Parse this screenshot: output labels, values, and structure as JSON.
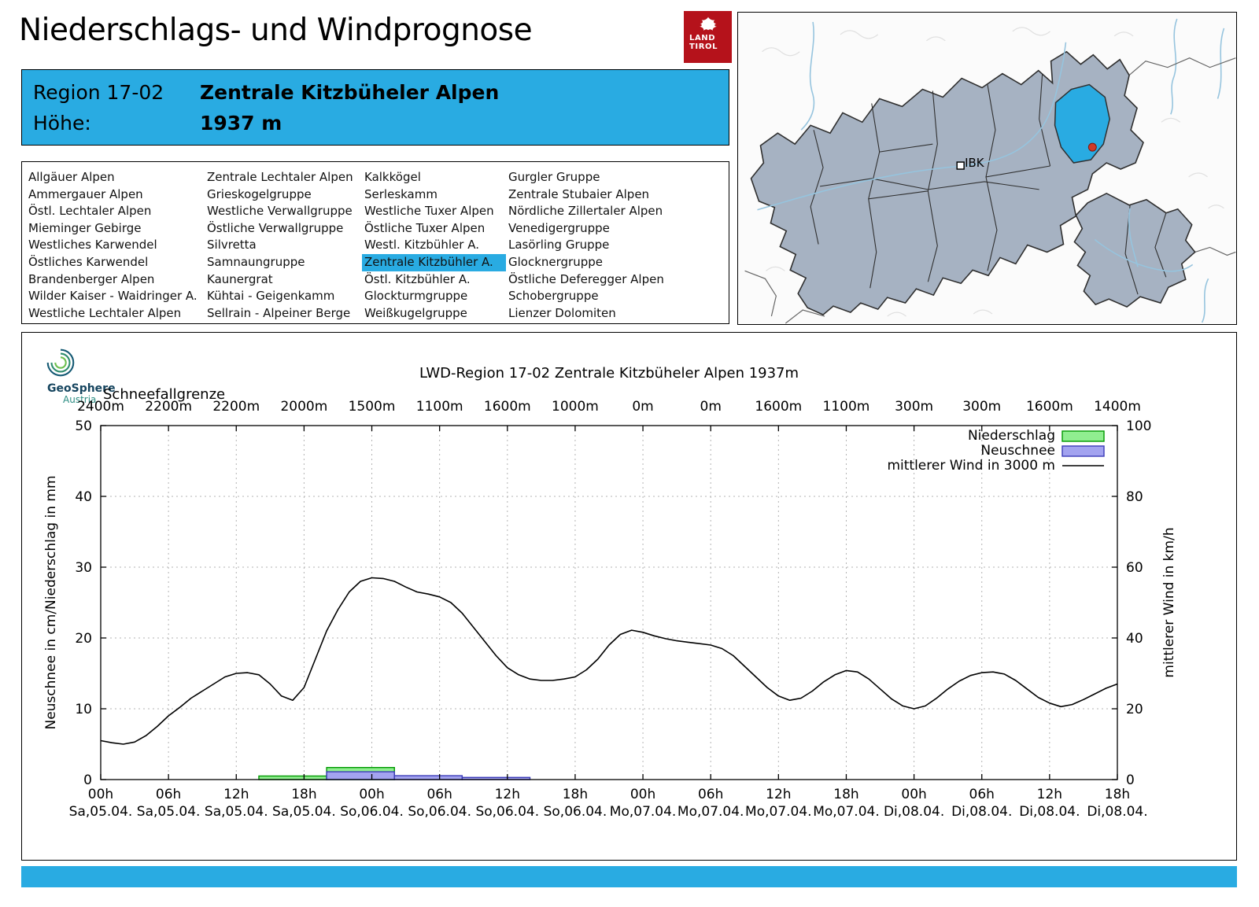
{
  "header": {
    "title": "Niederschlags- und Windprognose",
    "logo": {
      "line1": "LAND",
      "line2": "TIROL",
      "color": "#b5121b"
    }
  },
  "region_info": {
    "region_label": "Region 17-02",
    "region_name": "Zentrale Kitzbüheler Alpen",
    "altitude_label": "Höhe:",
    "altitude_value": "1937 m",
    "accent_color": "#29abe2"
  },
  "region_list": {
    "selected": "Zentrale Kitzbühler A.",
    "columns": [
      [
        "Allgäuer Alpen",
        "Ammergauer Alpen",
        "Östl. Lechtaler Alpen",
        "Mieminger Gebirge",
        "Westliches Karwendel",
        "Östliches Karwendel",
        "Brandenberger Alpen",
        "Wilder Kaiser - Waidringer A.",
        "Westliche Lechtaler Alpen"
      ],
      [
        "Zentrale Lechtaler Alpen",
        "Grieskogelgruppe",
        "Westliche Verwallgruppe",
        "Östliche Verwallgruppe",
        "Silvretta",
        "Samnaungruppe",
        "Kaunergrat",
        "Kühtai - Geigenkamm",
        "Sellrain - Alpeiner Berge"
      ],
      [
        "Kalkkögel",
        "Serleskamm",
        "Westliche Tuxer Alpen",
        "Östliche Tuxer Alpen",
        "Westl. Kitzbühler A.",
        "Zentrale Kitzbühler A.",
        "Östl. Kitzbühler A.",
        "Glockturmgruppe",
        "Weißkugelgruppe"
      ],
      [
        "Gurgler Gruppe",
        "Zentrale Stubaier Alpen",
        "Nördliche Zillertaler Alpen",
        "Venedigergruppe",
        "Lasörling Gruppe",
        "Glocknergruppe",
        "Östliche Deferegger Alpen",
        "Schobergruppe",
        "Lienzer Dolomiten"
      ]
    ]
  },
  "map": {
    "city_label": "IBK",
    "highlight_color": "#29abe2"
  },
  "geosphere": {
    "name": "GeoSphere",
    "sub": "Austria"
  },
  "chart_data": {
    "type": "line+bar",
    "title": "LWD-Region 17-02 Zentrale Kitzbüheler Alpen 1937m",
    "ylabel_left": "Neuschnee in cm/Niederschlag in mm",
    "ylabel_right": "mittlerer Wind in km/h",
    "ylim_left": [
      0,
      50
    ],
    "ylim_right": [
      0,
      100
    ],
    "xlim": [
      0,
      90
    ],
    "grid": true,
    "legend_position": "top-right",
    "schneefallgrenze": {
      "label": "Schneefallgrenze",
      "values": [
        "2400m",
        "2200m",
        "2200m",
        "2000m",
        "1500m",
        "1100m",
        "1600m",
        "1000m",
        "0m",
        "0m",
        "1600m",
        "1100m",
        "300m",
        "300m",
        "1600m",
        "1400m"
      ]
    },
    "x_ticks": [
      {
        "hour": 0,
        "time": "00h",
        "date": "Sa,05.04."
      },
      {
        "hour": 6,
        "time": "06h",
        "date": "Sa,05.04."
      },
      {
        "hour": 12,
        "time": "12h",
        "date": "Sa,05.04."
      },
      {
        "hour": 18,
        "time": "18h",
        "date": "Sa,05.04."
      },
      {
        "hour": 24,
        "time": "00h",
        "date": "So,06.04."
      },
      {
        "hour": 30,
        "time": "06h",
        "date": "So,06.04."
      },
      {
        "hour": 36,
        "time": "12h",
        "date": "So,06.04."
      },
      {
        "hour": 42,
        "time": "18h",
        "date": "So,06.04."
      },
      {
        "hour": 48,
        "time": "00h",
        "date": "Mo,07.04."
      },
      {
        "hour": 54,
        "time": "06h",
        "date": "Mo,07.04."
      },
      {
        "hour": 60,
        "time": "12h",
        "date": "Mo,07.04."
      },
      {
        "hour": 66,
        "time": "18h",
        "date": "Mo,07.04."
      },
      {
        "hour": 72,
        "time": "00h",
        "date": "Di,08.04."
      },
      {
        "hour": 78,
        "time": "06h",
        "date": "Di,08.04."
      },
      {
        "hour": 84,
        "time": "12h",
        "date": "Di,08.04."
      },
      {
        "hour": 90,
        "time": "18h",
        "date": "Di,08.04."
      }
    ],
    "legend": [
      {
        "label": "Niederschlag",
        "type": "box",
        "color": "#90ee90",
        "border": "#009900"
      },
      {
        "label": "Neuschnee",
        "type": "box",
        "color": "#a3a3f0",
        "border": "#3b3bb8"
      },
      {
        "label": "mittlerer Wind in 3000 m",
        "type": "line",
        "color": "#000000"
      }
    ],
    "wind_kmh_hourly": [
      11,
      10.4,
      10,
      10.6,
      12.4,
      15,
      18,
      20.4,
      23,
      25,
      27,
      29,
      30,
      30.2,
      29.6,
      27,
      23.6,
      22.4,
      26,
      34,
      42,
      48,
      53,
      56,
      57,
      56.8,
      56,
      54.4,
      53,
      52.4,
      51.6,
      50,
      47,
      43,
      39,
      35,
      31.6,
      29.6,
      28.4,
      28,
      28,
      28.4,
      29,
      31,
      34,
      38,
      41,
      42.2,
      41.6,
      40.6,
      39.8,
      39.2,
      38.8,
      38.4,
      38,
      37,
      35,
      32,
      29,
      26,
      23.6,
      22.4,
      23,
      25,
      27.6,
      29.6,
      30.8,
      30.4,
      28.4,
      25.6,
      22.8,
      20.8,
      20,
      20.8,
      23,
      25.6,
      27.8,
      29.4,
      30.2,
      30.4,
      29.8,
      28,
      25.6,
      23.2,
      21.6,
      20.6,
      21.2,
      22.6,
      24.2,
      25.8,
      27
    ],
    "niederschlag_bars_mm": [
      {
        "from_hour": 14,
        "to_hour": 20,
        "value": 0.5
      },
      {
        "from_hour": 20,
        "to_hour": 26,
        "value": 1.7
      }
    ],
    "neuschnee_bars_cm": [
      {
        "from_hour": 20,
        "to_hour": 26,
        "value": 1.1
      },
      {
        "from_hour": 26,
        "to_hour": 32,
        "value": 0.55
      },
      {
        "from_hour": 32,
        "to_hour": 38,
        "value": 0.3
      }
    ]
  }
}
